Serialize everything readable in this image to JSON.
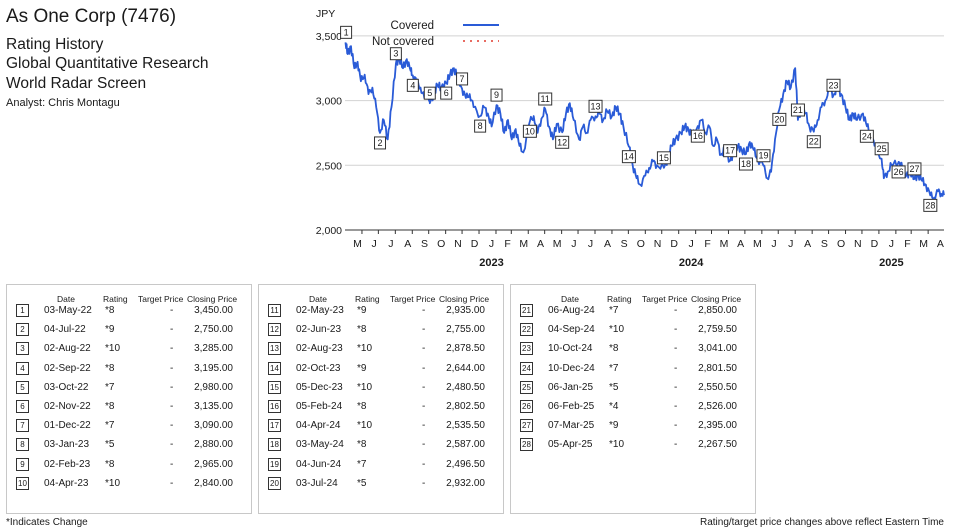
{
  "header": {
    "company": "As One Corp (7476)",
    "line1": "Rating History",
    "line2": "Global Quantitative Research",
    "line3": "World Radar Screen",
    "analyst": "Analyst: Chris Montagu"
  },
  "chart_data": {
    "type": "line",
    "ylabel": "JPY",
    "ylim": [
      2000,
      3700
    ],
    "yticks": [
      "2,000",
      "2,500",
      "3,000",
      "3,500"
    ],
    "ytick_values": [
      2000,
      2500,
      3000,
      3500
    ],
    "months": [
      "M",
      "J",
      "J",
      "A",
      "S",
      "O",
      "N",
      "D",
      "J",
      "F",
      "M",
      "A",
      "M",
      "J",
      "J",
      "A",
      "S",
      "O",
      "N",
      "D",
      "J",
      "F",
      "M",
      "A",
      "M",
      "J",
      "J",
      "A",
      "S",
      "O",
      "N",
      "D",
      "J",
      "F",
      "M",
      "A"
    ],
    "years": [
      {
        "label": "2023",
        "month_index": 8
      },
      {
        "label": "2024",
        "month_index": 20
      },
      {
        "label": "2025",
        "month_index": 32
      }
    ],
    "x_start": "2022-05-01",
    "x_end": "2025-04-30",
    "grid": true,
    "legend_position": "top",
    "legend": [
      {
        "name": "Covered",
        "style": "solid",
        "color": "#2a5bd7"
      },
      {
        "name": "Not covered",
        "style": "dotted",
        "color": "#e03a2f"
      }
    ],
    "series": [
      {
        "name": "Covered",
        "color": "#2a5bd7",
        "points": [
          [
            "2022-05-02",
            3450
          ],
          [
            "2022-05-06",
            3360
          ],
          [
            "2022-05-12",
            3420
          ],
          [
            "2022-05-18",
            3250
          ],
          [
            "2022-05-24",
            3300
          ],
          [
            "2022-05-30",
            3150
          ],
          [
            "2022-06-06",
            3200
          ],
          [
            "2022-06-13",
            3050
          ],
          [
            "2022-06-20",
            3100
          ],
          [
            "2022-06-27",
            2950
          ],
          [
            "2022-07-04",
            2750
          ],
          [
            "2022-07-11",
            2850
          ],
          [
            "2022-07-18",
            2700
          ],
          [
            "2022-07-25",
            2950
          ],
          [
            "2022-08-02",
            3285
          ],
          [
            "2022-08-08",
            3330
          ],
          [
            "2022-08-15",
            3250
          ],
          [
            "2022-08-22",
            3320
          ],
          [
            "2022-08-29",
            3230
          ],
          [
            "2022-09-02",
            3195
          ],
          [
            "2022-09-09",
            3150
          ],
          [
            "2022-09-16",
            3100
          ],
          [
            "2022-09-23",
            3020
          ],
          [
            "2022-09-30",
            3050
          ],
          [
            "2022-10-03",
            2980
          ],
          [
            "2022-10-10",
            3050
          ],
          [
            "2022-10-17",
            3120
          ],
          [
            "2022-10-24",
            3100
          ],
          [
            "2022-11-02",
            3135
          ],
          [
            "2022-11-09",
            3200
          ],
          [
            "2022-11-16",
            3250
          ],
          [
            "2022-11-23",
            3180
          ],
          [
            "2022-12-01",
            3090
          ],
          [
            "2022-12-08",
            3020
          ],
          [
            "2022-12-15",
            3050
          ],
          [
            "2022-12-22",
            2950
          ],
          [
            "2023-01-03",
            2880
          ],
          [
            "2023-01-10",
            2950
          ],
          [
            "2023-01-17",
            2900
          ],
          [
            "2023-01-24",
            2800
          ],
          [
            "2023-02-02",
            2965
          ],
          [
            "2023-02-09",
            2900
          ],
          [
            "2023-02-16",
            2750
          ],
          [
            "2023-02-23",
            2850
          ],
          [
            "2023-03-02",
            2700
          ],
          [
            "2023-03-09",
            2780
          ],
          [
            "2023-03-16",
            2650
          ],
          [
            "2023-03-23",
            2600
          ],
          [
            "2023-04-04",
            2840
          ],
          [
            "2023-04-11",
            2880
          ],
          [
            "2023-04-18",
            2750
          ],
          [
            "2023-04-25",
            2860
          ],
          [
            "2023-05-02",
            2935
          ],
          [
            "2023-05-09",
            2800
          ],
          [
            "2023-05-16",
            2700
          ],
          [
            "2023-05-23",
            2820
          ],
          [
            "2023-06-02",
            2755
          ],
          [
            "2023-06-09",
            2900
          ],
          [
            "2023-06-16",
            2980
          ],
          [
            "2023-06-23",
            2850
          ],
          [
            "2023-07-03",
            2700
          ],
          [
            "2023-07-10",
            2800
          ],
          [
            "2023-07-17",
            2750
          ],
          [
            "2023-07-24",
            2850
          ],
          [
            "2023-08-02",
            2878.5
          ],
          [
            "2023-08-09",
            2900
          ],
          [
            "2023-08-16",
            2850
          ],
          [
            "2023-08-23",
            2920
          ],
          [
            "2023-09-01",
            2880
          ],
          [
            "2023-09-08",
            2950
          ],
          [
            "2023-09-15",
            2900
          ],
          [
            "2023-09-22",
            2800
          ],
          [
            "2023-10-02",
            2644
          ],
          [
            "2023-10-09",
            2500
          ],
          [
            "2023-10-16",
            2400
          ],
          [
            "2023-10-23",
            2350
          ],
          [
            "2023-11-01",
            2420
          ],
          [
            "2023-11-08",
            2480
          ],
          [
            "2023-11-15",
            2530
          ],
          [
            "2023-11-22",
            2500
          ],
          [
            "2023-12-05",
            2480.5
          ],
          [
            "2023-12-12",
            2550
          ],
          [
            "2023-12-19",
            2650
          ],
          [
            "2023-12-26",
            2700
          ],
          [
            "2024-01-05",
            2750
          ],
          [
            "2024-01-12",
            2800
          ],
          [
            "2024-01-19",
            2780
          ],
          [
            "2024-01-26",
            2720
          ],
          [
            "2024-02-05",
            2802.5
          ],
          [
            "2024-02-12",
            2850
          ],
          [
            "2024-02-19",
            2750
          ],
          [
            "2024-02-26",
            2800
          ],
          [
            "2024-03-04",
            2650
          ],
          [
            "2024-03-11",
            2700
          ],
          [
            "2024-03-18",
            2580
          ],
          [
            "2024-03-25",
            2620
          ],
          [
            "2024-04-04",
            2535.5
          ],
          [
            "2024-04-11",
            2600
          ],
          [
            "2024-04-18",
            2650
          ],
          [
            "2024-04-25",
            2620
          ],
          [
            "2024-05-03",
            2587
          ],
          [
            "2024-05-10",
            2680
          ],
          [
            "2024-05-17",
            2620
          ],
          [
            "2024-05-24",
            2550
          ],
          [
            "2024-06-04",
            2496.5
          ],
          [
            "2024-06-11",
            2400
          ],
          [
            "2024-06-18",
            2450
          ],
          [
            "2024-06-25",
            2700
          ],
          [
            "2024-07-03",
            2932
          ],
          [
            "2024-07-10",
            3050
          ],
          [
            "2024-07-17",
            3150
          ],
          [
            "2024-07-24",
            3100
          ],
          [
            "2024-08-01",
            3250
          ],
          [
            "2024-08-06",
            2850
          ],
          [
            "2024-08-13",
            2950
          ],
          [
            "2024-08-20",
            2900
          ],
          [
            "2024-08-27",
            2800
          ],
          [
            "2024-09-04",
            2759.5
          ],
          [
            "2024-09-11",
            2850
          ],
          [
            "2024-09-18",
            2950
          ],
          [
            "2024-09-25",
            3000
          ],
          [
            "2024-10-03",
            3100
          ],
          [
            "2024-10-10",
            3041
          ],
          [
            "2024-10-17",
            3100
          ],
          [
            "2024-10-24",
            3050
          ],
          [
            "2024-11-01",
            2950
          ],
          [
            "2024-11-08",
            2850
          ],
          [
            "2024-11-15",
            2900
          ],
          [
            "2024-11-22",
            2850
          ],
          [
            "2024-12-03",
            2900
          ],
          [
            "2024-12-10",
            2801.5
          ],
          [
            "2024-12-17",
            2750
          ],
          [
            "2024-12-24",
            2650
          ],
          [
            "2025-01-06",
            2550.5
          ],
          [
            "2025-01-10",
            2400
          ],
          [
            "2025-01-17",
            2450
          ],
          [
            "2025-01-24",
            2500
          ],
          [
            "2025-02-06",
            2526
          ],
          [
            "2025-02-13",
            2480
          ],
          [
            "2025-02-20",
            2420
          ],
          [
            "2025-02-27",
            2450
          ],
          [
            "2025-03-07",
            2395
          ],
          [
            "2025-03-14",
            2430
          ],
          [
            "2025-03-21",
            2380
          ],
          [
            "2025-03-28",
            2350
          ],
          [
            "2025-04-05",
            2267.5
          ],
          [
            "2025-04-12",
            2250
          ],
          [
            "2025-04-19",
            2300
          ],
          [
            "2025-04-25",
            2280
          ],
          [
            "2025-04-30",
            2270
          ]
        ]
      }
    ],
    "markers": [
      {
        "n": "1",
        "date": "2022-05-03",
        "price": 3450
      },
      {
        "n": "2",
        "date": "2022-07-04",
        "price": 2750
      },
      {
        "n": "3",
        "date": "2022-08-02",
        "price": 3285
      },
      {
        "n": "4",
        "date": "2022-09-02",
        "price": 3195
      },
      {
        "n": "5",
        "date": "2022-10-03",
        "price": 2980
      },
      {
        "n": "6",
        "date": "2022-11-02",
        "price": 3135
      },
      {
        "n": "7",
        "date": "2022-12-01",
        "price": 3090
      },
      {
        "n": "8",
        "date": "2023-01-03",
        "price": 2880
      },
      {
        "n": "9",
        "date": "2023-02-02",
        "price": 2965
      },
      {
        "n": "10",
        "date": "2023-04-04",
        "price": 2840
      },
      {
        "n": "11",
        "date": "2023-05-02",
        "price": 2935
      },
      {
        "n": "12",
        "date": "2023-06-02",
        "price": 2755
      },
      {
        "n": "13",
        "date": "2023-08-02",
        "price": 2878.5
      },
      {
        "n": "14",
        "date": "2023-10-02",
        "price": 2644
      },
      {
        "n": "15",
        "date": "2023-12-05",
        "price": 2480.5
      },
      {
        "n": "16",
        "date": "2024-02-05",
        "price": 2802.5
      },
      {
        "n": "17",
        "date": "2024-04-04",
        "price": 2535.5
      },
      {
        "n": "18",
        "date": "2024-05-03",
        "price": 2587
      },
      {
        "n": "19",
        "date": "2024-06-04",
        "price": 2496.5
      },
      {
        "n": "20",
        "date": "2024-07-03",
        "price": 2932
      },
      {
        "n": "21",
        "date": "2024-08-06",
        "price": 2850
      },
      {
        "n": "22",
        "date": "2024-09-04",
        "price": 2759.5
      },
      {
        "n": "23",
        "date": "2024-10-10",
        "price": 3041
      },
      {
        "n": "24",
        "date": "2024-12-10",
        "price": 2801.5
      },
      {
        "n": "25",
        "date": "2025-01-06",
        "price": 2550.5
      },
      {
        "n": "26",
        "date": "2025-02-06",
        "price": 2526
      },
      {
        "n": "27",
        "date": "2025-03-07",
        "price": 2395
      },
      {
        "n": "28",
        "date": "2025-04-05",
        "price": 2267.5
      }
    ]
  },
  "table": {
    "headers": {
      "date": "Date",
      "rating": "Rating",
      "target": "Target Price",
      "closing": "Closing Price"
    },
    "panels": [
      [
        {
          "n": "1",
          "date": "03-May-22",
          "rating": "*8",
          "target": "-",
          "closing": "3,450.00"
        },
        {
          "n": "2",
          "date": "04-Jul-22",
          "rating": "*9",
          "target": "-",
          "closing": "2,750.00"
        },
        {
          "n": "3",
          "date": "02-Aug-22",
          "rating": "*10",
          "target": "-",
          "closing": "3,285.00"
        },
        {
          "n": "4",
          "date": "02-Sep-22",
          "rating": "*8",
          "target": "-",
          "closing": "3,195.00"
        },
        {
          "n": "5",
          "date": "03-Oct-22",
          "rating": "*7",
          "target": "-",
          "closing": "2,980.00"
        },
        {
          "n": "6",
          "date": "02-Nov-22",
          "rating": "*8",
          "target": "-",
          "closing": "3,135.00"
        },
        {
          "n": "7",
          "date": "01-Dec-22",
          "rating": "*7",
          "target": "-",
          "closing": "3,090.00"
        },
        {
          "n": "8",
          "date": "03-Jan-23",
          "rating": "*5",
          "target": "-",
          "closing": "2,880.00"
        },
        {
          "n": "9",
          "date": "02-Feb-23",
          "rating": "*8",
          "target": "-",
          "closing": "2,965.00"
        },
        {
          "n": "10",
          "date": "04-Apr-23",
          "rating": "*10",
          "target": "-",
          "closing": "2,840.00"
        }
      ],
      [
        {
          "n": "11",
          "date": "02-May-23",
          "rating": "*9",
          "target": "-",
          "closing": "2,935.00"
        },
        {
          "n": "12",
          "date": "02-Jun-23",
          "rating": "*8",
          "target": "-",
          "closing": "2,755.00"
        },
        {
          "n": "13",
          "date": "02-Aug-23",
          "rating": "*10",
          "target": "-",
          "closing": "2,878.50"
        },
        {
          "n": "14",
          "date": "02-Oct-23",
          "rating": "*9",
          "target": "-",
          "closing": "2,644.00"
        },
        {
          "n": "15",
          "date": "05-Dec-23",
          "rating": "*10",
          "target": "-",
          "closing": "2,480.50"
        },
        {
          "n": "16",
          "date": "05-Feb-24",
          "rating": "*8",
          "target": "-",
          "closing": "2,802.50"
        },
        {
          "n": "17",
          "date": "04-Apr-24",
          "rating": "*10",
          "target": "-",
          "closing": "2,535.50"
        },
        {
          "n": "18",
          "date": "03-May-24",
          "rating": "*8",
          "target": "-",
          "closing": "2,587.00"
        },
        {
          "n": "19",
          "date": "04-Jun-24",
          "rating": "*7",
          "target": "-",
          "closing": "2,496.50"
        },
        {
          "n": "20",
          "date": "03-Jul-24",
          "rating": "*5",
          "target": "-",
          "closing": "2,932.00"
        }
      ],
      [
        {
          "n": "21",
          "date": "06-Aug-24",
          "rating": "*7",
          "target": "-",
          "closing": "2,850.00"
        },
        {
          "n": "22",
          "date": "04-Sep-24",
          "rating": "*10",
          "target": "-",
          "closing": "2,759.50"
        },
        {
          "n": "23",
          "date": "10-Oct-24",
          "rating": "*8",
          "target": "-",
          "closing": "3,041.00"
        },
        {
          "n": "24",
          "date": "10-Dec-24",
          "rating": "*7",
          "target": "-",
          "closing": "2,801.50"
        },
        {
          "n": "25",
          "date": "06-Jan-25",
          "rating": "*5",
          "target": "-",
          "closing": "2,550.50"
        },
        {
          "n": "26",
          "date": "06-Feb-25",
          "rating": "*4",
          "target": "-",
          "closing": "2,526.00"
        },
        {
          "n": "27",
          "date": "07-Mar-25",
          "rating": "*9",
          "target": "-",
          "closing": "2,395.00"
        },
        {
          "n": "28",
          "date": "05-Apr-25",
          "rating": "*10",
          "target": "-",
          "closing": "2,267.50"
        }
      ]
    ]
  },
  "footer": {
    "left": "*Indicates Change",
    "right": "Rating/target price changes above reflect Eastern Time"
  }
}
